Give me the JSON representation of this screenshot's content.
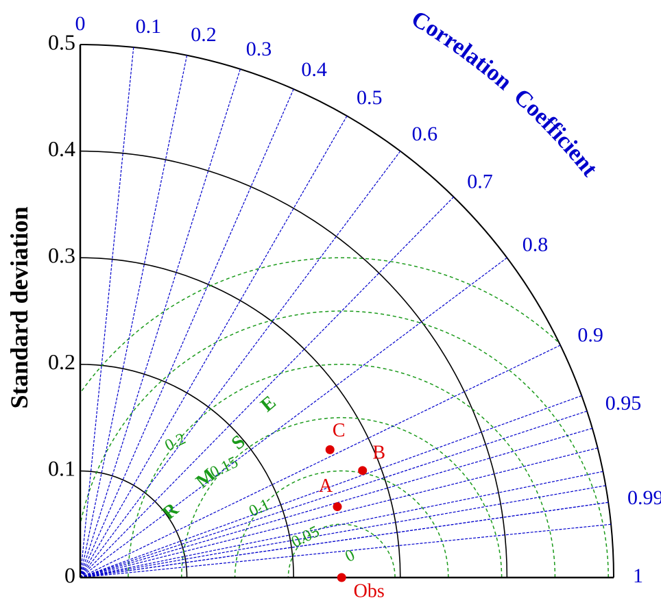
{
  "chart_data": {
    "type": "taylor_diagram",
    "ylabel": "Standard deviation",
    "corr_label": "Correlation Coefficient",
    "rmse_label": "RMSE",
    "std_ticks": [
      0,
      0.1,
      0.2,
      0.3,
      0.4,
      0.5
    ],
    "std_tick_labels": [
      "0",
      "0.1",
      "0.2",
      "0.3",
      "0.4",
      "0.5"
    ],
    "std_range": [
      0,
      0.5
    ],
    "corr_ticks": [
      0,
      0.1,
      0.2,
      0.3,
      0.4,
      0.5,
      0.6,
      0.7,
      0.8,
      0.9,
      0.95,
      0.99,
      1
    ],
    "corr_tick_labels": [
      "0",
      "0.1",
      "0.2",
      "0.3",
      "0.4",
      "0.5",
      "0.6",
      "0.7",
      "0.8",
      "0.9",
      "0.95",
      "0.99",
      "1"
    ],
    "corr_minor_lines": [
      0.94,
      0.96,
      0.97,
      0.98,
      0.985,
      0.99,
      0.995
    ],
    "rmse_levels": [
      0.05,
      0.1,
      0.15,
      0.2
    ],
    "rmse_level_labels": [
      "0.05",
      "0.1",
      "0.15",
      "0.2"
    ],
    "rmse_zero_label": "0",
    "reference": {
      "name": "Obs",
      "std": 0.245
    },
    "points": [
      {
        "name": "A",
        "std": 0.25,
        "corr": 0.964
      },
      {
        "name": "B",
        "std": 0.283,
        "corr": 0.935
      },
      {
        "name": "C",
        "std": 0.263,
        "corr": 0.89
      }
    ],
    "colors": {
      "axis": "#000000",
      "corr": "#0000cc",
      "rmse": "#1a9a1a",
      "points": "#e00000"
    }
  }
}
